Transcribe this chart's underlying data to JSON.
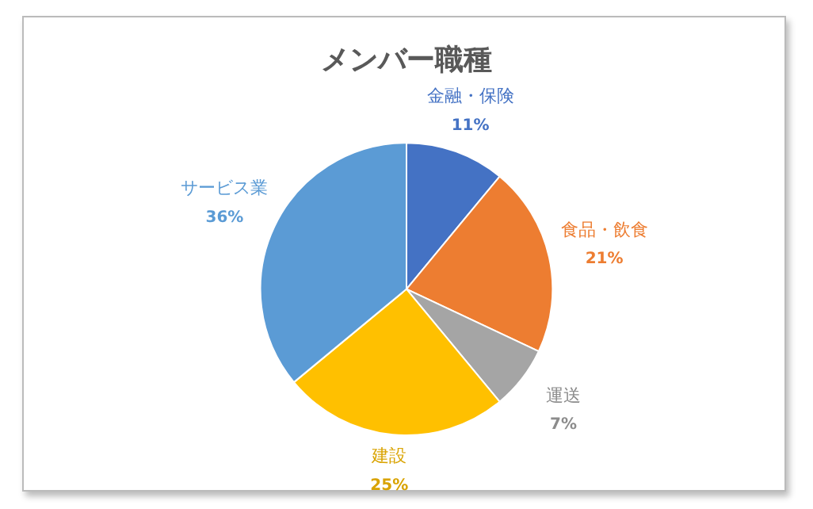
{
  "chart_data": {
    "type": "pie",
    "title": "メンバー職種",
    "categories": [
      "金融・保険",
      "食品・飲食",
      "運送",
      "建設",
      "サービス業"
    ],
    "values": [
      11,
      21,
      7,
      25,
      36
    ],
    "colors": [
      "#4472c4",
      "#ed7d31",
      "#a5a5a5",
      "#ffc000",
      "#5b9bd5"
    ],
    "value_labels": [
      "11%",
      "21%",
      "7%",
      "25%",
      "36%"
    ],
    "legend": false
  }
}
